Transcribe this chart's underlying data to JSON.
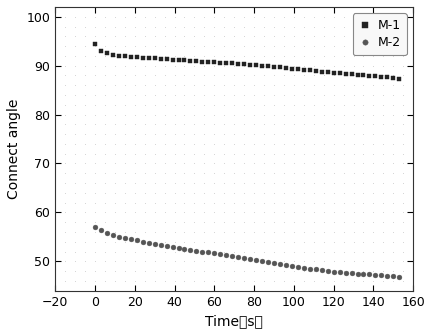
{
  "title": "",
  "xlabel": "Time（s）",
  "ylabel": "Connect angle",
  "xlim": [
    -20,
    160
  ],
  "ylim": [
    44,
    102
  ],
  "yticks": [
    50,
    60,
    70,
    80,
    90,
    100
  ],
  "xticks": [
    -20,
    0,
    20,
    40,
    60,
    80,
    100,
    120,
    140,
    160
  ],
  "legend_labels": [
    "M-1",
    "M-2"
  ],
  "m1_color": "#222222",
  "m2_color": "#555555",
  "background_color": "#ffffff",
  "dot_color": "#cccccc",
  "m1_x": [
    0,
    3,
    6,
    9,
    12,
    15,
    18,
    21,
    24,
    27,
    30,
    33,
    36,
    39,
    42,
    45,
    48,
    51,
    54,
    57,
    60,
    63,
    66,
    69,
    72,
    75,
    78,
    81,
    84,
    87,
    90,
    93,
    96,
    99,
    102,
    105,
    108,
    111,
    114,
    117,
    120,
    123,
    126,
    129,
    132,
    135,
    138,
    141,
    144,
    147,
    150,
    153
  ],
  "m1_y": [
    94.5,
    93.0,
    92.5,
    92.2,
    92.0,
    92.0,
    91.8,
    91.8,
    91.6,
    91.5,
    91.5,
    91.4,
    91.3,
    91.2,
    91.2,
    91.1,
    91.0,
    90.9,
    90.8,
    90.8,
    90.7,
    90.6,
    90.5,
    90.5,
    90.4,
    90.3,
    90.2,
    90.1,
    90.0,
    90.0,
    89.8,
    89.7,
    89.5,
    89.4,
    89.3,
    89.2,
    89.1,
    89.0,
    88.8,
    88.7,
    88.5,
    88.4,
    88.3,
    88.2,
    88.1,
    88.0,
    87.9,
    87.8,
    87.7,
    87.6,
    87.5,
    87.3
  ],
  "m2_x": [
    0,
    3,
    6,
    9,
    12,
    15,
    18,
    21,
    24,
    27,
    30,
    33,
    36,
    39,
    42,
    45,
    48,
    51,
    54,
    57,
    60,
    63,
    66,
    69,
    72,
    75,
    78,
    81,
    84,
    87,
    90,
    93,
    96,
    99,
    102,
    105,
    108,
    111,
    114,
    117,
    120,
    123,
    126,
    129,
    132,
    135,
    138,
    141,
    144,
    147,
    150,
    153
  ],
  "m2_y": [
    57.0,
    56.3,
    55.8,
    55.4,
    55.0,
    54.8,
    54.5,
    54.3,
    54.0,
    53.8,
    53.6,
    53.4,
    53.2,
    53.0,
    52.8,
    52.6,
    52.4,
    52.2,
    52.0,
    51.8,
    51.6,
    51.4,
    51.2,
    51.0,
    50.8,
    50.6,
    50.4,
    50.2,
    50.0,
    49.8,
    49.6,
    49.4,
    49.2,
    49.0,
    48.9,
    48.7,
    48.5,
    48.4,
    48.2,
    48.0,
    47.9,
    47.8,
    47.7,
    47.6,
    47.5,
    47.4,
    47.3,
    47.2,
    47.1,
    47.0,
    46.9,
    46.8
  ]
}
